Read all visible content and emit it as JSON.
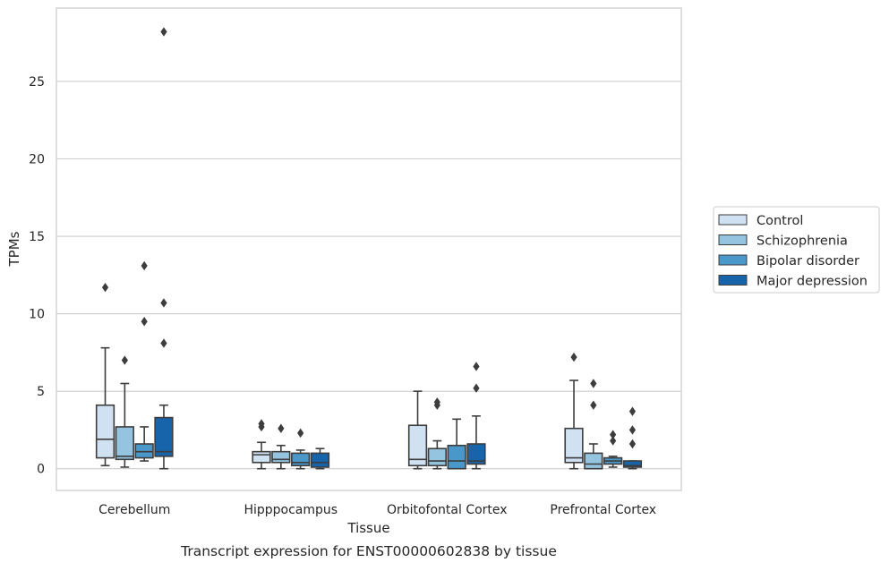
{
  "chart_data": {
    "type": "box",
    "xlabel": "Tissue",
    "ylabel": "TPMs",
    "caption": "Transcript expression for ENST00000602838 by tissue",
    "categories": [
      "Cerebellum",
      "Hipppocampus",
      "Orbitofontal Cortex",
      "Prefrontal Cortex"
    ],
    "ylim": [
      -1.4,
      29.5
    ],
    "yticks": [
      0,
      5,
      10,
      15,
      20,
      25
    ],
    "grid": "horizontal",
    "legend_position": "right",
    "series": [
      {
        "name": "Control",
        "color": "#d0e1f2",
        "boxes": [
          {
            "whislo": 0.2,
            "q1": 0.7,
            "med": 1.9,
            "q3": 4.1,
            "whishi": 7.8,
            "fliers": [
              11.7
            ]
          },
          {
            "whislo": 0.0,
            "q1": 0.4,
            "med": 0.9,
            "q3": 1.1,
            "whishi": 1.7,
            "fliers": [
              2.7,
              2.9
            ]
          },
          {
            "whislo": 0.0,
            "q1": 0.2,
            "med": 0.6,
            "q3": 2.8,
            "whishi": 5.0,
            "fliers": []
          },
          {
            "whislo": 0.0,
            "q1": 0.4,
            "med": 0.7,
            "q3": 2.6,
            "whishi": 5.7,
            "fliers": [
              7.2
            ]
          }
        ]
      },
      {
        "name": "Schizophrenia",
        "color": "#94c4df",
        "boxes": [
          {
            "whislo": 0.1,
            "q1": 0.6,
            "med": 0.8,
            "q3": 2.7,
            "whishi": 5.5,
            "fliers": [
              7.0
            ]
          },
          {
            "whislo": 0.0,
            "q1": 0.4,
            "med": 0.6,
            "q3": 1.1,
            "whishi": 1.5,
            "fliers": [
              2.6
            ]
          },
          {
            "whislo": 0.0,
            "q1": 0.2,
            "med": 0.5,
            "q3": 1.3,
            "whishi": 1.8,
            "fliers": [
              4.1,
              4.3
            ]
          },
          {
            "whislo": 0.0,
            "q1": 0.0,
            "med": 0.3,
            "q3": 1.0,
            "whishi": 1.6,
            "fliers": [
              4.1,
              5.5
            ]
          }
        ]
      },
      {
        "name": "Bipolar disorder",
        "color": "#4a98c9",
        "boxes": [
          {
            "whislo": 0.5,
            "q1": 0.7,
            "med": 1.1,
            "q3": 1.6,
            "whishi": 2.7,
            "fliers": [
              9.5,
              13.1
            ]
          },
          {
            "whislo": 0.0,
            "q1": 0.2,
            "med": 0.4,
            "q3": 1.0,
            "whishi": 1.2,
            "fliers": [
              2.3
            ]
          },
          {
            "whislo": 0.0,
            "q1": 0.0,
            "med": 0.5,
            "q3": 1.5,
            "whishi": 3.2,
            "fliers": []
          },
          {
            "whislo": 0.1,
            "q1": 0.3,
            "med": 0.5,
            "q3": 0.7,
            "whishi": 0.8,
            "fliers": [
              1.8,
              2.2
            ]
          }
        ]
      },
      {
        "name": "Major depression",
        "color": "#1764ab",
        "boxes": [
          {
            "whislo": 0.0,
            "q1": 0.8,
            "med": 1.1,
            "q3": 3.3,
            "whishi": 4.1,
            "fliers": [
              8.1,
              10.7,
              28.2
            ]
          },
          {
            "whislo": 0.0,
            "q1": 0.1,
            "med": 0.4,
            "q3": 1.0,
            "whishi": 1.3,
            "fliers": []
          },
          {
            "whislo": 0.0,
            "q1": 0.3,
            "med": 0.5,
            "q3": 1.6,
            "whishi": 3.4,
            "fliers": [
              5.2,
              6.6
            ]
          },
          {
            "whislo": 0.0,
            "q1": 0.1,
            "med": 0.2,
            "q3": 0.5,
            "whishi": 0.5,
            "fliers": [
              1.6,
              2.5,
              3.7
            ]
          }
        ]
      }
    ]
  }
}
